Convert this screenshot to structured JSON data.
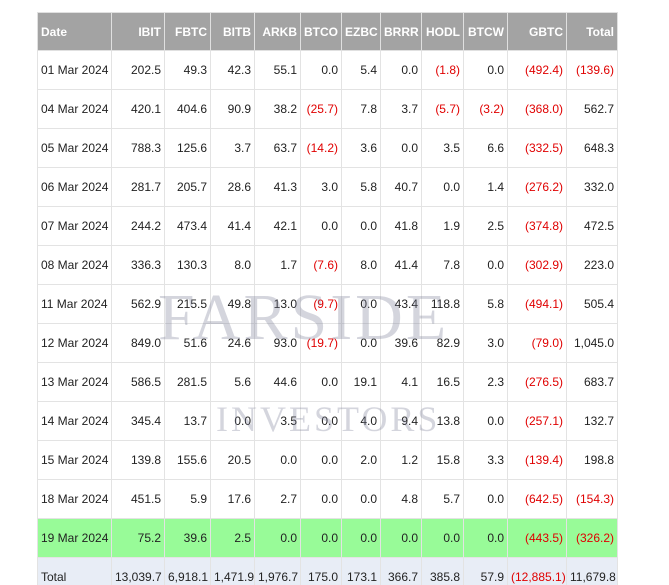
{
  "table": {
    "header": [
      "Date",
      "IBIT",
      "FBTC",
      "BITB",
      "ARKB",
      "BTCO",
      "EZBC",
      "BRRR",
      "HODL",
      "BTCW",
      "GBTC",
      "Total"
    ],
    "rows": [
      [
        "01 Mar 2024",
        "202.5",
        "49.3",
        "42.3",
        "55.1",
        "0.0",
        "5.4",
        "0.0",
        "(1.8)",
        "0.0",
        "(492.4)",
        "(139.6)"
      ],
      [
        "04 Mar 2024",
        "420.1",
        "404.6",
        "90.9",
        "38.2",
        "(25.7)",
        "7.8",
        "3.7",
        "(5.7)",
        "(3.2)",
        "(368.0)",
        "562.7"
      ],
      [
        "05 Mar 2024",
        "788.3",
        "125.6",
        "3.7",
        "63.7",
        "(14.2)",
        "3.6",
        "0.0",
        "3.5",
        "6.6",
        "(332.5)",
        "648.3"
      ],
      [
        "06 Mar 2024",
        "281.7",
        "205.7",
        "28.6",
        "41.3",
        "3.0",
        "5.8",
        "40.7",
        "0.0",
        "1.4",
        "(276.2)",
        "332.0"
      ],
      [
        "07 Mar 2024",
        "244.2",
        "473.4",
        "41.4",
        "42.1",
        "0.0",
        "0.0",
        "41.8",
        "1.9",
        "2.5",
        "(374.8)",
        "472.5"
      ],
      [
        "08 Mar 2024",
        "336.3",
        "130.3",
        "8.0",
        "1.7",
        "(7.6)",
        "8.0",
        "41.4",
        "7.8",
        "0.0",
        "(302.9)",
        "223.0"
      ],
      [
        "11 Mar 2024",
        "562.9",
        "215.5",
        "49.8",
        "13.0",
        "(9.7)",
        "0.0",
        "43.4",
        "118.8",
        "5.8",
        "(494.1)",
        "505.4"
      ],
      [
        "12 Mar 2024",
        "849.0",
        "51.6",
        "24.6",
        "93.0",
        "(19.7)",
        "0.0",
        "39.6",
        "82.9",
        "3.0",
        "(79.0)",
        "1,045.0"
      ],
      [
        "13 Mar 2024",
        "586.5",
        "281.5",
        "5.6",
        "44.6",
        "0.0",
        "19.1",
        "4.1",
        "16.5",
        "2.3",
        "(276.5)",
        "683.7"
      ],
      [
        "14 Mar 2024",
        "345.4",
        "13.7",
        "0.0",
        "3.5",
        "0.0",
        "4.0",
        "9.4",
        "13.8",
        "0.0",
        "(257.1)",
        "132.7"
      ],
      [
        "15 Mar 2024",
        "139.8",
        "155.6",
        "20.5",
        "0.0",
        "0.0",
        "2.0",
        "1.2",
        "15.8",
        "3.3",
        "(139.4)",
        "198.8"
      ],
      [
        "18 Mar 2024",
        "451.5",
        "5.9",
        "17.6",
        "2.7",
        "0.0",
        "0.0",
        "4.8",
        "5.7",
        "0.0",
        "(642.5)",
        "(154.3)"
      ],
      [
        "19 Mar 2024",
        "75.2",
        "39.6",
        "2.5",
        "0.0",
        "0.0",
        "0.0",
        "0.0",
        "0.0",
        "0.0",
        "(443.5)",
        "(326.2)"
      ]
    ],
    "total": [
      "Total",
      "13,039.7",
      "6,918.1",
      "1,471.9",
      "1,976.7",
      "175.0",
      "173.1",
      "366.7",
      "385.8",
      "57.9",
      "(12,885.1)",
      "11,679.8"
    ]
  },
  "watermark": [
    "FARSIDE",
    "INVESTORS"
  ]
}
